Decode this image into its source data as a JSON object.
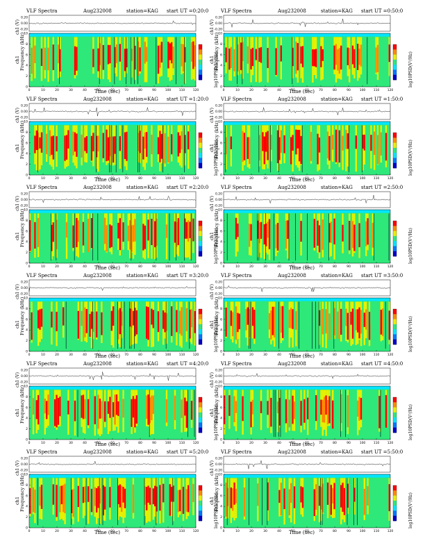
{
  "chart_data": [
    {
      "type": "heatmap",
      "title": "VLF Spectra",
      "date": "Aug232008",
      "station": "station=KAG",
      "start": "start UT =0:20:0",
      "top_ylabel": "ch1 (V)",
      "top_yticks": [
        "0.20",
        "0.00",
        "-0.20"
      ],
      "ylabel": "Frequency (kHz)",
      "channel_label": "ch1",
      "xlabel": "Time (sec)",
      "xlim": [
        0,
        120
      ],
      "xticks": [
        0,
        10,
        20,
        30,
        40,
        50,
        60,
        70,
        80,
        90,
        100,
        110,
        120
      ],
      "ylim": [
        0,
        10
      ],
      "yticks": [
        0,
        2,
        4,
        6,
        8,
        10
      ],
      "colorbar_label": "log10PSD(V²/Hz)",
      "colormap": [
        "#0000c8",
        "#0078ff",
        "#00e6ff",
        "#2ee87a",
        "#e8f000",
        "#ff8a00",
        "#ff0000"
      ]
    },
    {
      "type": "heatmap",
      "title": "VLF Spectra",
      "date": "Aug232008",
      "station": "station=KAG",
      "start": "start UT =0:50:0",
      "top_ylabel": "ch1 (V)",
      "top_yticks": [
        "0.20",
        "0.00",
        "-0.20"
      ],
      "ylabel": "Frequency (kHz)",
      "channel_label": "ch1",
      "xlabel": "Time (sec)",
      "xlim": [
        0,
        120
      ],
      "xticks": [
        0,
        10,
        20,
        30,
        40,
        50,
        60,
        70,
        80,
        90,
        100,
        110,
        120
      ],
      "ylim": [
        0,
        10
      ],
      "yticks": [
        0,
        2,
        4,
        6,
        8,
        10
      ],
      "colorbar_label": "log10PSD(V²/Hz)",
      "colormap": [
        "#0000c8",
        "#0078ff",
        "#00e6ff",
        "#2ee87a",
        "#e8f000",
        "#ff8a00",
        "#ff0000"
      ]
    },
    {
      "type": "heatmap",
      "title": "VLF Spectra",
      "date": "Aug232008",
      "station": "station=KAG",
      "start": "start UT =1:20:0",
      "top_ylabel": "ch1 (V)",
      "top_yticks": [
        "0.20",
        "0.00",
        "-0.20"
      ],
      "ylabel": "Frequency (kHz)",
      "channel_label": "ch1",
      "xlabel": "Time (sec)",
      "xlim": [
        0,
        120
      ],
      "xticks": [
        0,
        10,
        20,
        30,
        40,
        50,
        60,
        70,
        80,
        90,
        100,
        110,
        120
      ],
      "ylim": [
        0,
        10
      ],
      "yticks": [
        0,
        2,
        4,
        6,
        8,
        10
      ],
      "colorbar_label": "log10PSD(V²/Hz)",
      "colormap": [
        "#0000c8",
        "#0078ff",
        "#00e6ff",
        "#2ee87a",
        "#e8f000",
        "#ff8a00",
        "#ff0000"
      ]
    },
    {
      "type": "heatmap",
      "title": "VLF Spectra",
      "date": "Aug232008",
      "station": "station=KAG",
      "start": "start UT =1:50:0",
      "top_ylabel": "ch1 (V)",
      "top_yticks": [
        "0.20",
        "0.00",
        "-0.20"
      ],
      "ylabel": "Frequency (kHz)",
      "channel_label": "ch1",
      "xlabel": "Time (sec)",
      "xlim": [
        0,
        120
      ],
      "xticks": [
        0,
        10,
        20,
        30,
        40,
        50,
        60,
        70,
        80,
        90,
        100,
        110,
        120
      ],
      "ylim": [
        0,
        10
      ],
      "yticks": [
        0,
        2,
        4,
        6,
        8,
        10
      ],
      "colorbar_label": "log10PSD(V²/Hz)",
      "colormap": [
        "#0000c8",
        "#0078ff",
        "#00e6ff",
        "#2ee87a",
        "#e8f000",
        "#ff8a00",
        "#ff0000"
      ]
    },
    {
      "type": "heatmap",
      "title": "VLF Spectra",
      "date": "Aug232008",
      "station": "station=KAG",
      "start": "start UT =2:20:0",
      "top_ylabel": "ch1 (V)",
      "top_yticks": [
        "0.20",
        "0.00",
        "-0.20"
      ],
      "ylabel": "Frequency (kHz)",
      "channel_label": "ch1",
      "xlabel": "Time (sec)",
      "xlim": [
        0,
        120
      ],
      "xticks": [
        0,
        10,
        20,
        30,
        40,
        50,
        60,
        70,
        80,
        90,
        100,
        110,
        120
      ],
      "ylim": [
        0,
        10
      ],
      "yticks": [
        0,
        2,
        4,
        6,
        8,
        10
      ],
      "colorbar_label": "log10PSD(V²/Hz)",
      "colormap": [
        "#0000c8",
        "#0078ff",
        "#00e6ff",
        "#2ee87a",
        "#e8f000",
        "#ff8a00",
        "#ff0000"
      ]
    },
    {
      "type": "heatmap",
      "title": "VLF Spectra",
      "date": "Aug232008",
      "station": "station=KAG",
      "start": "start UT =2:50:0",
      "top_ylabel": "ch1 (V)",
      "top_yticks": [
        "0.20",
        "0.00",
        "-0.20"
      ],
      "ylabel": "Frequency (kHz)",
      "channel_label": "ch1",
      "xlabel": "Time (sec)",
      "xlim": [
        0,
        120
      ],
      "xticks": [
        0,
        10,
        20,
        30,
        40,
        50,
        60,
        70,
        80,
        90,
        100,
        110,
        120
      ],
      "ylim": [
        0,
        10
      ],
      "yticks": [
        0,
        2,
        4,
        6,
        8,
        10
      ],
      "colorbar_label": "log10PSD(V²/Hz)",
      "colormap": [
        "#0000c8",
        "#0078ff",
        "#00e6ff",
        "#2ee87a",
        "#e8f000",
        "#ff8a00",
        "#ff0000"
      ]
    },
    {
      "type": "heatmap",
      "title": "VLF Spectra",
      "date": "Aug232008",
      "station": "station=KAG",
      "start": "start UT =3:20:0",
      "top_ylabel": "ch1 (V)",
      "top_yticks": [
        "0.20",
        "0.00",
        "-0.20"
      ],
      "ylabel": "Frequency (kHz)",
      "channel_label": "ch1",
      "xlabel": "Time (sec)",
      "xlim": [
        0,
        120
      ],
      "xticks": [
        0,
        10,
        20,
        30,
        40,
        50,
        60,
        70,
        80,
        90,
        100,
        110,
        120
      ],
      "ylim": [
        0,
        10
      ],
      "yticks": [
        0,
        2,
        4,
        6,
        8,
        10
      ],
      "colorbar_label": "log10PSD(V²/Hz)",
      "colormap": [
        "#0000c8",
        "#0078ff",
        "#00e6ff",
        "#2ee87a",
        "#e8f000",
        "#ff8a00",
        "#ff0000"
      ]
    },
    {
      "type": "heatmap",
      "title": "VLF Spectra",
      "date": "Aug232008",
      "station": "station=KAG",
      "start": "start UT =3:50:0",
      "top_ylabel": "ch1 (V)",
      "top_yticks": [
        "0.20",
        "0.00",
        "-0.20"
      ],
      "ylabel": "Frequency (kHz)",
      "channel_label": "ch1",
      "xlabel": "Time (sec)",
      "xlim": [
        0,
        120
      ],
      "xticks": [
        0,
        10,
        20,
        30,
        40,
        50,
        60,
        70,
        80,
        90,
        100,
        110,
        120
      ],
      "ylim": [
        0,
        10
      ],
      "yticks": [
        0,
        2,
        4,
        6,
        8,
        10
      ],
      "colorbar_label": "log10PSD(V²/Hz)",
      "colormap": [
        "#0000c8",
        "#0078ff",
        "#00e6ff",
        "#2ee87a",
        "#e8f000",
        "#ff8a00",
        "#ff0000"
      ]
    },
    {
      "type": "heatmap",
      "title": "VLF Spectra",
      "date": "Aug232008",
      "station": "station=KAG",
      "start": "start UT =4:20:0",
      "top_ylabel": "ch1 (V)",
      "top_yticks": [
        "0.20",
        "0.00",
        "-0.20"
      ],
      "ylabel": "Frequency (kHz)",
      "channel_label": "ch1",
      "xlabel": "Time (sec)",
      "xlim": [
        0,
        120
      ],
      "xticks": [
        0,
        10,
        20,
        30,
        40,
        50,
        60,
        70,
        80,
        90,
        100,
        110,
        120
      ],
      "ylim": [
        0,
        10
      ],
      "yticks": [
        0,
        2,
        4,
        6,
        8,
        10
      ],
      "colorbar_label": "log10PSD(V²/Hz)",
      "colormap": [
        "#0000c8",
        "#0078ff",
        "#00e6ff",
        "#2ee87a",
        "#e8f000",
        "#ff8a00",
        "#ff0000"
      ]
    },
    {
      "type": "heatmap",
      "title": "VLF Spectra",
      "date": "Aug232008",
      "station": "station=KAG",
      "start": "start UT =4:50:0",
      "top_ylabel": "ch1 (V)",
      "top_yticks": [
        "0.20",
        "0.00",
        "-0.20"
      ],
      "ylabel": "Frequency (kHz)",
      "channel_label": "ch1",
      "xlabel": "Time (sec)",
      "xlim": [
        0,
        120
      ],
      "xticks": [
        0,
        10,
        20,
        30,
        40,
        50,
        60,
        70,
        80,
        90,
        100,
        110,
        120
      ],
      "ylim": [
        0,
        10
      ],
      "yticks": [
        0,
        2,
        4,
        6,
        8,
        10
      ],
      "colorbar_label": "log10PSD(V²/Hz)",
      "colormap": [
        "#0000c8",
        "#0078ff",
        "#00e6ff",
        "#2ee87a",
        "#e8f000",
        "#ff8a00",
        "#ff0000"
      ]
    },
    {
      "type": "heatmap",
      "title": "VLF Spectra",
      "date": "Aug232008",
      "station": "station=KAG",
      "start": "start UT =5:20:0",
      "top_ylabel": "ch1 (V)",
      "top_yticks": [
        "0.20",
        "0.00",
        "-0.20"
      ],
      "ylabel": "Frequency (kHz)",
      "channel_label": "ch1",
      "xlabel": "Time (sec)",
      "xlim": [
        0,
        120
      ],
      "xticks": [
        0,
        10,
        20,
        30,
        40,
        50,
        60,
        70,
        80,
        90,
        100,
        110,
        120
      ],
      "ylim": [
        0,
        10
      ],
      "yticks": [
        0,
        2,
        4,
        6,
        8,
        10
      ],
      "colorbar_label": "log10PSD(V²/Hz)",
      "colormap": [
        "#0000c8",
        "#0078ff",
        "#00e6ff",
        "#2ee87a",
        "#e8f000",
        "#ff8a00",
        "#ff0000"
      ]
    },
    {
      "type": "heatmap",
      "title": "VLF Spectra",
      "date": "Aug232008",
      "station": "station=KAG",
      "start": "start UT =5:50:0",
      "top_ylabel": "ch1 (V)",
      "top_yticks": [
        "0.20",
        "0.00",
        "-0.20"
      ],
      "ylabel": "Frequency (kHz)",
      "channel_label": "ch1",
      "xlabel": "Time (sec)",
      "xlim": [
        0,
        120
      ],
      "xticks": [
        0,
        10,
        20,
        30,
        40,
        50,
        60,
        70,
        80,
        90,
        100,
        110,
        120
      ],
      "ylim": [
        0,
        10
      ],
      "yticks": [
        0,
        2,
        4,
        6,
        8,
        10
      ],
      "colorbar_label": "log10PSD(V²/Hz)",
      "colormap": [
        "#0000c8",
        "#0078ff",
        "#00e6ff",
        "#2ee87a",
        "#e8f000",
        "#ff8a00",
        "#ff0000"
      ]
    }
  ]
}
